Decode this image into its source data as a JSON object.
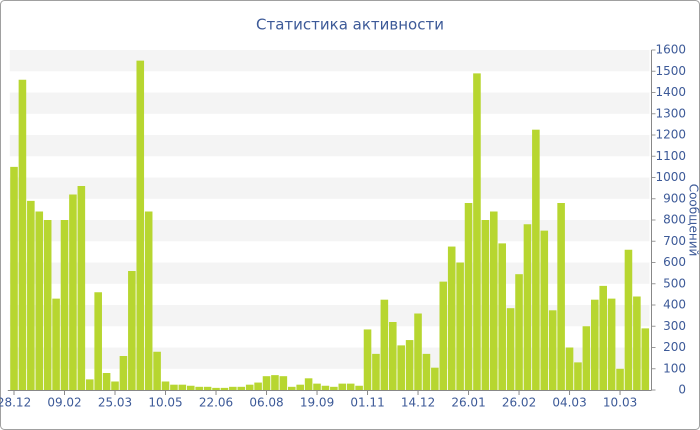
{
  "chart_data": {
    "type": "bar",
    "title": "Статистика активности",
    "y_label": "Сообщений",
    "categories": [
      "28.12",
      null,
      null,
      null,
      null,
      null,
      "09.02",
      null,
      null,
      null,
      null,
      null,
      "25.03",
      null,
      null,
      null,
      null,
      null,
      "10.05",
      null,
      null,
      null,
      null,
      null,
      "22.06",
      null,
      null,
      null,
      null,
      null,
      "06.08",
      null,
      null,
      null,
      null,
      null,
      "19.09",
      null,
      null,
      null,
      null,
      null,
      "01.11",
      null,
      null,
      null,
      null,
      null,
      "14.12",
      null,
      null,
      null,
      null,
      null,
      "26.01",
      null,
      null,
      null,
      null,
      null,
      "26.02",
      null,
      null,
      null,
      null,
      null,
      "04.03",
      null,
      null,
      null,
      null,
      null,
      "10.03",
      null,
      null,
      null
    ],
    "values": [
      1050,
      1460,
      890,
      840,
      800,
      430,
      800,
      920,
      960,
      50,
      460,
      80,
      40,
      160,
      560,
      1550,
      840,
      180,
      40,
      25,
      25,
      20,
      15,
      15,
      10,
      10,
      15,
      15,
      25,
      35,
      65,
      70,
      65,
      15,
      25,
      55,
      30,
      20,
      15,
      30,
      30,
      20,
      285,
      170,
      425,
      320,
      210,
      235,
      360,
      170,
      105,
      510,
      675,
      600,
      880,
      1490,
      800,
      840,
      690,
      385,
      545,
      780,
      1225,
      750,
      375,
      880,
      200,
      130,
      300,
      425,
      490,
      430,
      100,
      660,
      440,
      290
    ],
    "color": "#b7d630",
    "ylim": [
      0,
      1600
    ],
    "yticks": [
      0,
      100,
      200,
      300,
      400,
      500,
      600,
      700,
      800,
      900,
      1000,
      1100,
      1200,
      1300,
      1400,
      1500,
      1600
    ],
    "grid": true
  }
}
